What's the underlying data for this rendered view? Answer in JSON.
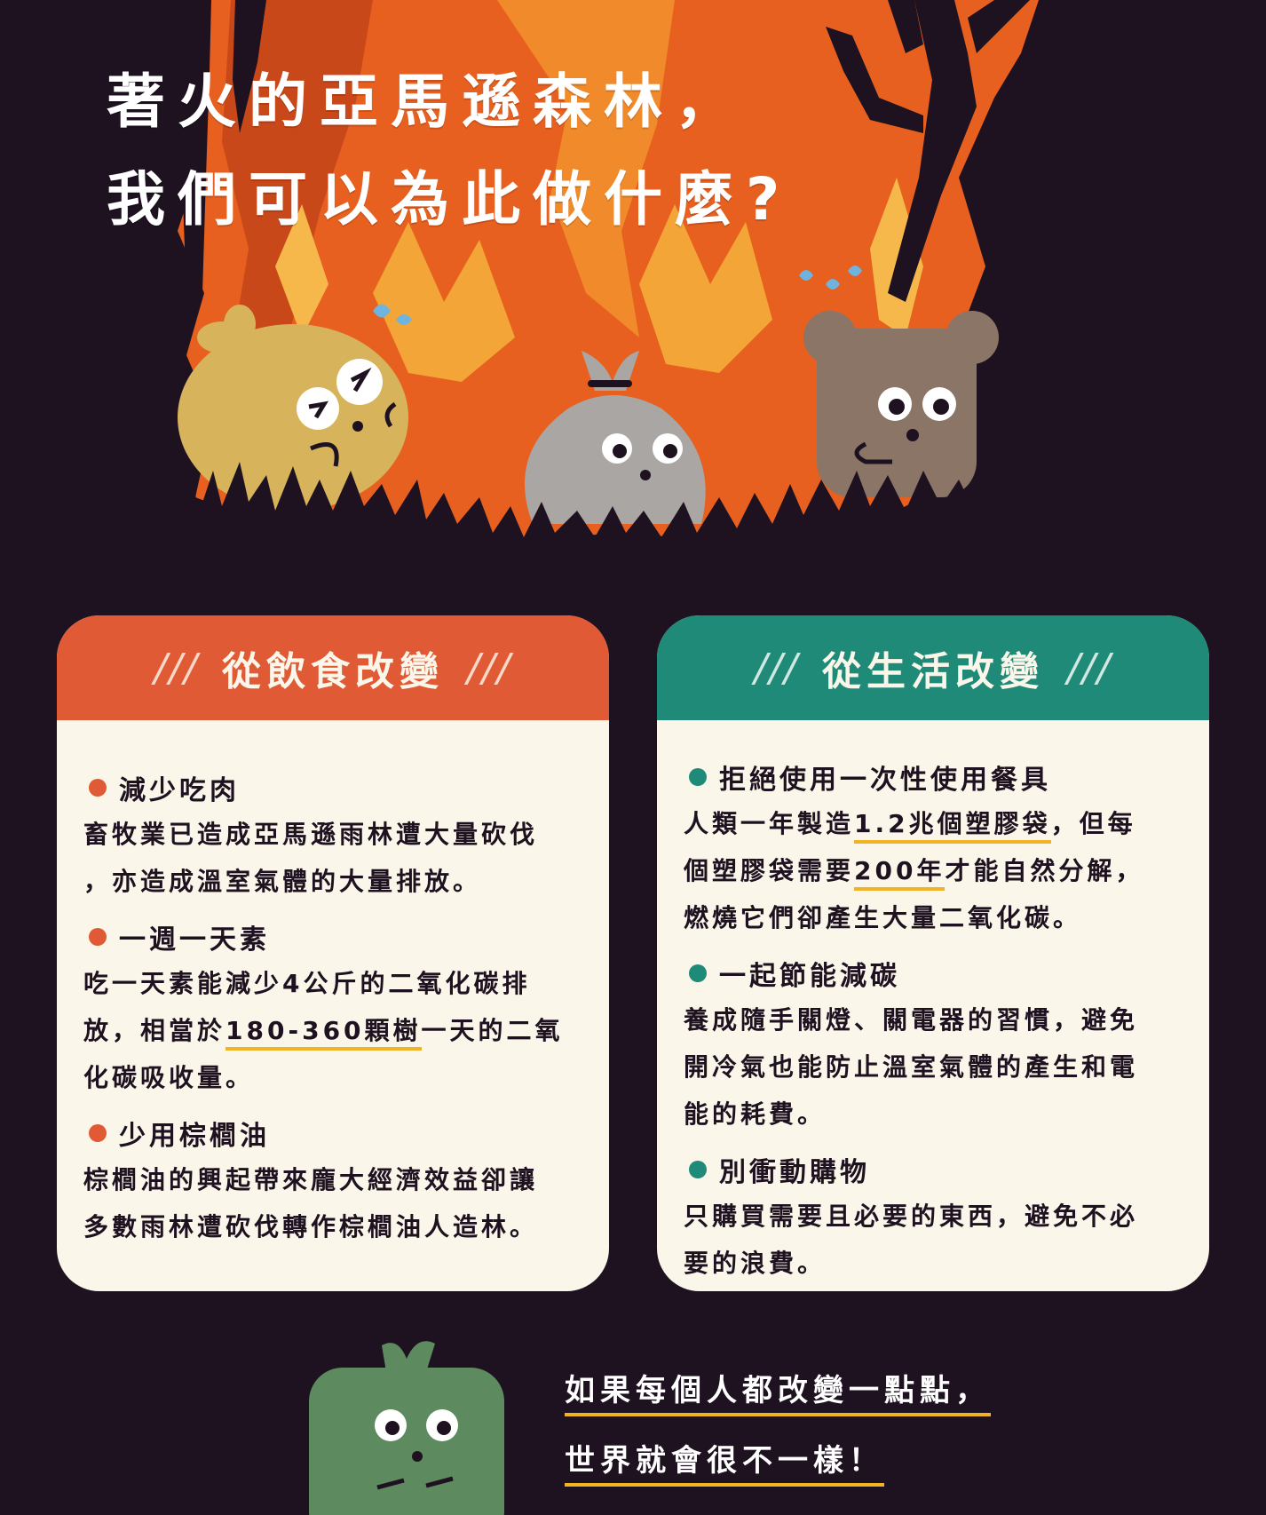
{
  "title": {
    "line1": "著火的亞馬遜森林，",
    "line2": "我們可以為此做什麼?"
  },
  "colors": {
    "background": "#1e1120",
    "fire_orange": "#e8601f",
    "card_left_header": "#e05a35",
    "card_right_header": "#1f8a78",
    "card_body": "#fbf6ea",
    "highlight": "#f0b323"
  },
  "characters": [
    "yellow-creature",
    "garbage-bag-creature",
    "brown-bear",
    "green-creature"
  ],
  "diet_card": {
    "slashes_left": "///",
    "heading": "從飲食改變",
    "slashes_right": "///",
    "items": [
      {
        "title": "減少吃肉",
        "line1": "畜牧業已造成亞馬遜雨林遭大量砍伐",
        "line2": "，亦造成溫室氣體的大量排放。"
      },
      {
        "title": "一週一天素",
        "line1": "吃一天素能減少4公斤的二氧化碳排",
        "line2_pre": "放，相當於",
        "line2_hl": "180-360顆樹",
        "line2_post": "一天的二氧",
        "line3": "化碳吸收量。"
      },
      {
        "title": "少用棕櫚油",
        "line1": "棕櫚油的興起帶來龐大經濟效益卻讓",
        "line2": "多數雨林遭砍伐轉作棕櫚油人造林。"
      }
    ]
  },
  "life_card": {
    "slashes_left": "///",
    "heading": "從生活改變",
    "slashes_right": "///",
    "items": [
      {
        "title": "拒絕使用一次性使用餐具",
        "line1_pre": "人類一年製造",
        "line1_hl": "1.2兆個塑膠袋",
        "line1_post": "，但每",
        "line2_pre": "個塑膠袋需要",
        "line2_hl": "200年",
        "line2_post": "才能自然分解，",
        "line3": "燃燒它們卻產生大量二氧化碳。"
      },
      {
        "title": "一起節能減碳",
        "line1": "養成隨手關燈、關電器的習慣，避免",
        "line2": "開冷氣也能防止溫室氣體的產生和電",
        "line3": "能的耗費。"
      },
      {
        "title": "別衝動購物",
        "line1": "只購買需要且必要的東西，避免不必",
        "line2": "要的浪費。"
      }
    ]
  },
  "footer": {
    "line1": "如果每個人都改變一點點，",
    "line2": "世界就會很不一樣！"
  }
}
